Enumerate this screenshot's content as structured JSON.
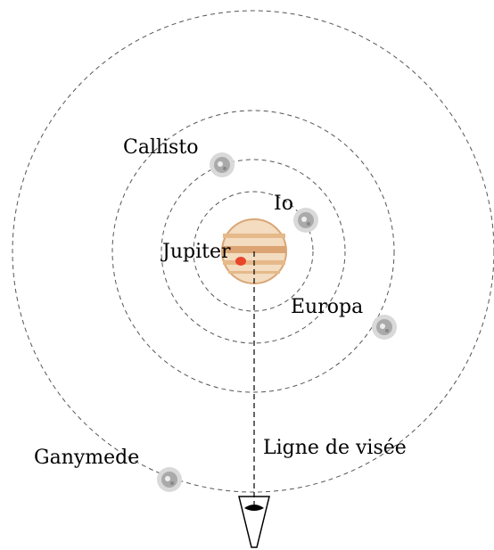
{
  "labels": {
    "jupiter": "Jupiter",
    "io": "Io",
    "europa": "Europa",
    "callisto": "Callisto",
    "ganymede": "Ganymede",
    "line_of_sight": "Ligne de visée"
  }
}
